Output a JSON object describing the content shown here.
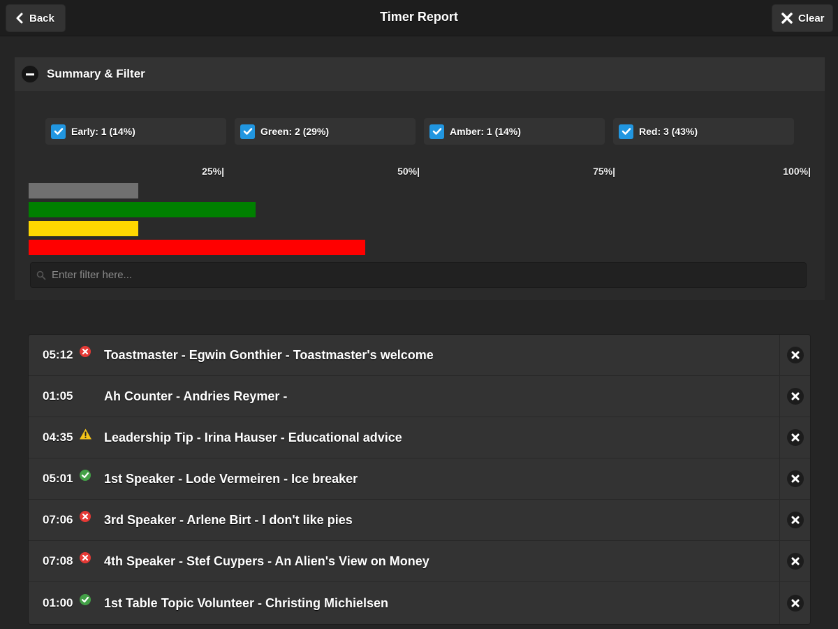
{
  "header": {
    "title": "Timer Report",
    "back_label": "Back",
    "clear_label": "Clear"
  },
  "panel": {
    "title": "Summary & Filter",
    "filters": [
      {
        "label": "Early: 1 (14%)",
        "checked": true,
        "fraction": 0.14,
        "color": "#707070"
      },
      {
        "label": "Green: 2 (29%)",
        "checked": true,
        "fraction": 0.29,
        "color": "#008000"
      },
      {
        "label": "Amber: 1 (14%)",
        "checked": true,
        "fraction": 0.14,
        "color": "#ffd700"
      },
      {
        "label": "Red: 3 (43%)",
        "checked": true,
        "fraction": 0.43,
        "color": "#ff0000"
      }
    ],
    "scale_ticks": [
      "25%|",
      "50%|",
      "75%|",
      "100%|"
    ],
    "filter_placeholder": "Enter filter here..."
  },
  "entries": [
    {
      "time": "05:12",
      "status": "red",
      "label": "Toastmaster - Egwin Gonthier - Toastmaster's welcome"
    },
    {
      "time": "01:05",
      "status": "none",
      "label": "Ah Counter - Andries Reymer -"
    },
    {
      "time": "04:35",
      "status": "amber",
      "label": "Leadership Tip - Irina Hauser - Educational advice"
    },
    {
      "time": "05:01",
      "status": "green",
      "label": "1st Speaker - Lode Vermeiren - Ice breaker"
    },
    {
      "time": "07:06",
      "status": "red",
      "label": "3rd Speaker - Arlene Birt - I don't like pies"
    },
    {
      "time": "07:08",
      "status": "red",
      "label": "4th Speaker - Stef Cuypers - An Alien's View on Money"
    },
    {
      "time": "01:00",
      "status": "green",
      "label": "1st Table Topic Volunteer - Christing Michielsen"
    }
  ],
  "colors": {
    "status_red": "#e53935",
    "status_green": "#43a047",
    "status_amber": "#f5c518",
    "checkbox": "#2196e0"
  }
}
